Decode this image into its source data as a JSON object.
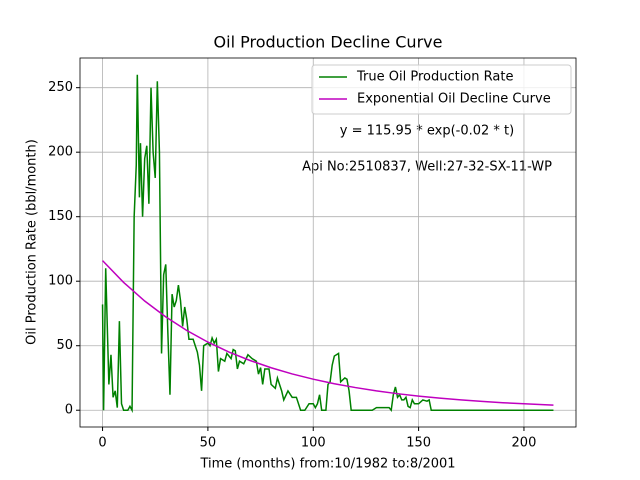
{
  "chart_data": {
    "type": "line",
    "title": "Oil Production Decline Curve",
    "xlabel": "Time (months) from:10/1982 to:8/2001",
    "ylabel": "Oil Production Rate (bbl/month)",
    "annotations": [
      "y = 115.95 * exp(-0.02 * t)",
      "Api No:2510837, Well:27-32-SX-11-WP"
    ],
    "xlim": [
      -10.7,
      224.7
    ],
    "ylim": [
      -13,
      273
    ],
    "xticks": [
      0,
      50,
      100,
      150,
      200
    ],
    "yticks": [
      0,
      50,
      100,
      150,
      200,
      250
    ],
    "grid": true,
    "legend": "upper right",
    "series": [
      {
        "name": "True Oil Production Rate",
        "color": "#008000",
        "x": [
          0,
          0.5,
          1.5,
          3,
          4,
          5,
          6,
          7,
          8,
          9,
          10,
          12,
          13,
          14,
          15,
          16,
          16.5,
          17.5,
          18,
          19,
          20,
          21,
          22,
          23,
          24,
          25,
          26,
          27,
          28,
          29,
          30,
          31,
          32,
          33,
          34,
          35,
          36,
          37,
          38,
          39,
          40,
          41,
          43,
          44,
          45,
          46,
          47,
          48,
          50,
          51,
          52,
          53,
          54,
          55,
          56,
          58,
          59,
          61,
          62,
          63,
          64,
          65,
          67,
          69,
          71,
          73,
          74,
          75,
          76,
          77,
          79,
          80,
          82,
          83,
          85,
          86,
          88,
          90,
          92,
          94,
          96,
          98,
          100,
          101,
          102,
          103,
          104,
          106,
          107,
          108,
          109,
          110,
          112,
          113,
          115,
          116,
          117,
          118,
          128,
          130,
          136,
          137,
          138,
          139,
          140,
          141,
          142,
          143,
          144,
          145,
          146,
          147,
          148,
          150,
          152,
          154,
          155,
          156,
          214
        ],
        "values": [
          82,
          0,
          110,
          20,
          43,
          10,
          15,
          2,
          69,
          5,
          0,
          0,
          3,
          0,
          150,
          190,
          260,
          165,
          207,
          150,
          195,
          205,
          160,
          250,
          200,
          180,
          255,
          200,
          44,
          105,
          113,
          60,
          12,
          90,
          80,
          85,
          97,
          85,
          65,
          80,
          70,
          55,
          55,
          50,
          45,
          35,
          15,
          50,
          52,
          50,
          56,
          52,
          55,
          30,
          40,
          38,
          44,
          40,
          47,
          46,
          32,
          38,
          36,
          43,
          40,
          38,
          28,
          33,
          20,
          32,
          32,
          20,
          17,
          25,
          15,
          8,
          15,
          10,
          10,
          0,
          0,
          5,
          5,
          2,
          5,
          12,
          0,
          0,
          20,
          22,
          35,
          42,
          44,
          22,
          25,
          24,
          15,
          0,
          0,
          2,
          2,
          0,
          12,
          18,
          10,
          12,
          8,
          8,
          10,
          3,
          2,
          8,
          5,
          5,
          8,
          7,
          8,
          0,
          0
        ]
      },
      {
        "name": "Exponential Oil Decline Curve",
        "color": "#bf00bf",
        "x": [
          0,
          10,
          20,
          30,
          40,
          50,
          60,
          70,
          80,
          90,
          100,
          110,
          120,
          130,
          140,
          150,
          160,
          170,
          180,
          190,
          200,
          210,
          214
        ],
        "values": [
          115.95,
          99.07,
          84.65,
          72.33,
          61.8,
          52.8,
          45.12,
          38.55,
          32.94,
          28.14,
          24.05,
          20.55,
          17.56,
          15.0,
          12.82,
          10.95,
          9.36,
          8.0,
          6.83,
          5.84,
          4.99,
          4.26,
          4.0
        ]
      }
    ]
  }
}
